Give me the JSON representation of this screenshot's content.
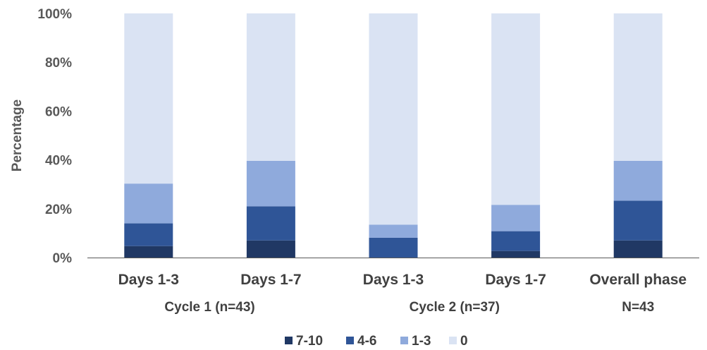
{
  "chart_data": {
    "type": "bar",
    "stacked": true,
    "ylabel": "Percentage",
    "ylim": [
      0,
      100
    ],
    "yticks": [
      "0%",
      "20%",
      "40%",
      "60%",
      "80%",
      "100%"
    ],
    "yticks_values": [
      0,
      20,
      40,
      60,
      80,
      100
    ],
    "categories": [
      "Days 1-3",
      "Days 1-7",
      "Days 1-3",
      "Days 1-7",
      "Overall phase"
    ],
    "groups": [
      {
        "label": "Cycle 1 (n=43)",
        "span": [
          0,
          1
        ]
      },
      {
        "label": "Cycle 2 (n=37)",
        "span": [
          2,
          3
        ]
      },
      {
        "label": "N=43",
        "span": [
          4,
          4
        ]
      }
    ],
    "series": [
      {
        "name": "7-10",
        "color": "#203864",
        "values": [
          4.7,
          7.0,
          0.0,
          2.7,
          7.0
        ]
      },
      {
        "name": "4-6",
        "color": "#2F5597",
        "values": [
          9.3,
          14.0,
          8.1,
          8.1,
          16.3
        ]
      },
      {
        "name": "1-3",
        "color": "#8FAADC",
        "values": [
          16.3,
          18.6,
          5.4,
          10.8,
          16.3
        ]
      },
      {
        "name": "0",
        "color": "#DAE3F3",
        "values": [
          69.7,
          60.4,
          86.5,
          78.4,
          60.4
        ]
      }
    ],
    "legend_position": "bottom",
    "grid": false
  }
}
